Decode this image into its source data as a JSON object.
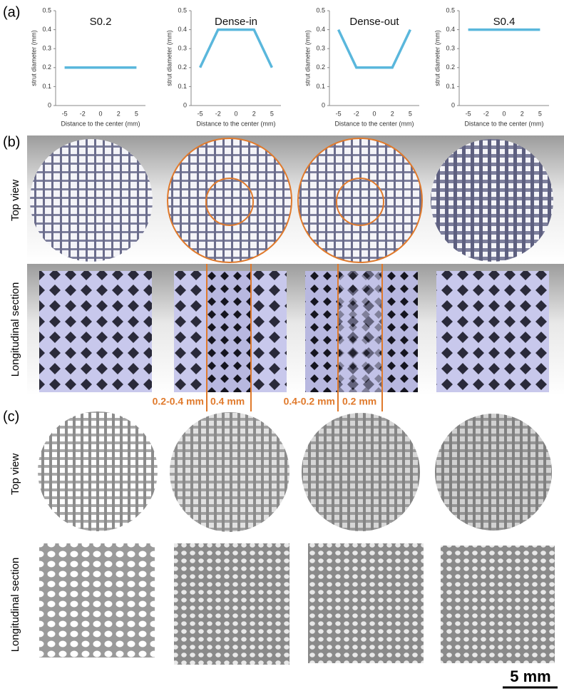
{
  "chart_data": [
    {
      "type": "line",
      "title": "S0.2",
      "x_label": "Distance to the center (mm)",
      "y_label": "strut diameter (mm)",
      "categories": [
        "-5",
        "-2",
        "0",
        "2",
        "5"
      ],
      "values": [
        0.2,
        0.2,
        0.2,
        0.2,
        0.2
      ],
      "color": "#5ab7dc",
      "ylim": [
        0,
        0.5
      ],
      "yticks": [
        0,
        0.1,
        0.2,
        0.3,
        0.4,
        0.5
      ]
    },
    {
      "type": "line",
      "title": "Dense-in",
      "x_label": "Distance to the center (mm)",
      "y_label": "strut diameter (mm)",
      "categories": [
        "-5",
        "-2",
        "0",
        "2",
        "5"
      ],
      "values": [
        0.2,
        0.4,
        0.4,
        0.4,
        0.2
      ],
      "color": "#5ab7dc",
      "ylim": [
        0,
        0.5
      ],
      "yticks": [
        0,
        0.1,
        0.2,
        0.3,
        0.4,
        0.5
      ]
    },
    {
      "type": "line",
      "title": "Dense-out",
      "x_label": "Distance to the center (mm)",
      "y_label": "strut diameter (mm)",
      "categories": [
        "-5",
        "-2",
        "0",
        "2",
        "5"
      ],
      "values": [
        0.4,
        0.2,
        0.2,
        0.2,
        0.4
      ],
      "color": "#5ab7dc",
      "ylim": [
        0,
        0.5
      ],
      "yticks": [
        0,
        0.1,
        0.2,
        0.3,
        0.4,
        0.5
      ]
    },
    {
      "type": "line",
      "title": "S0.4",
      "x_label": "Distance to the center (mm)",
      "y_label": "strut diameter (mm)",
      "categories": [
        "-5",
        "-2",
        "0",
        "2",
        "5"
      ],
      "values": [
        0.4,
        0.4,
        0.4,
        0.4,
        0.4
      ],
      "color": "#5ab7dc",
      "ylim": [
        0,
        0.5
      ],
      "yticks": [
        0,
        0.1,
        0.2,
        0.3,
        0.4,
        0.5
      ]
    }
  ],
  "panel_a": {
    "label": "(a)"
  },
  "panel_b": {
    "label": "(b)",
    "row_labels": [
      "Top view",
      "Longitudinal section"
    ],
    "annotations": [
      "0.2-0.4 mm",
      "0.4 mm",
      "0.4-0.2 mm",
      "0.2 mm"
    ]
  },
  "panel_c": {
    "label": "(c)",
    "row_labels": [
      "Top view",
      "Longitudinal section"
    ]
  },
  "scale_bar": "5 mm"
}
